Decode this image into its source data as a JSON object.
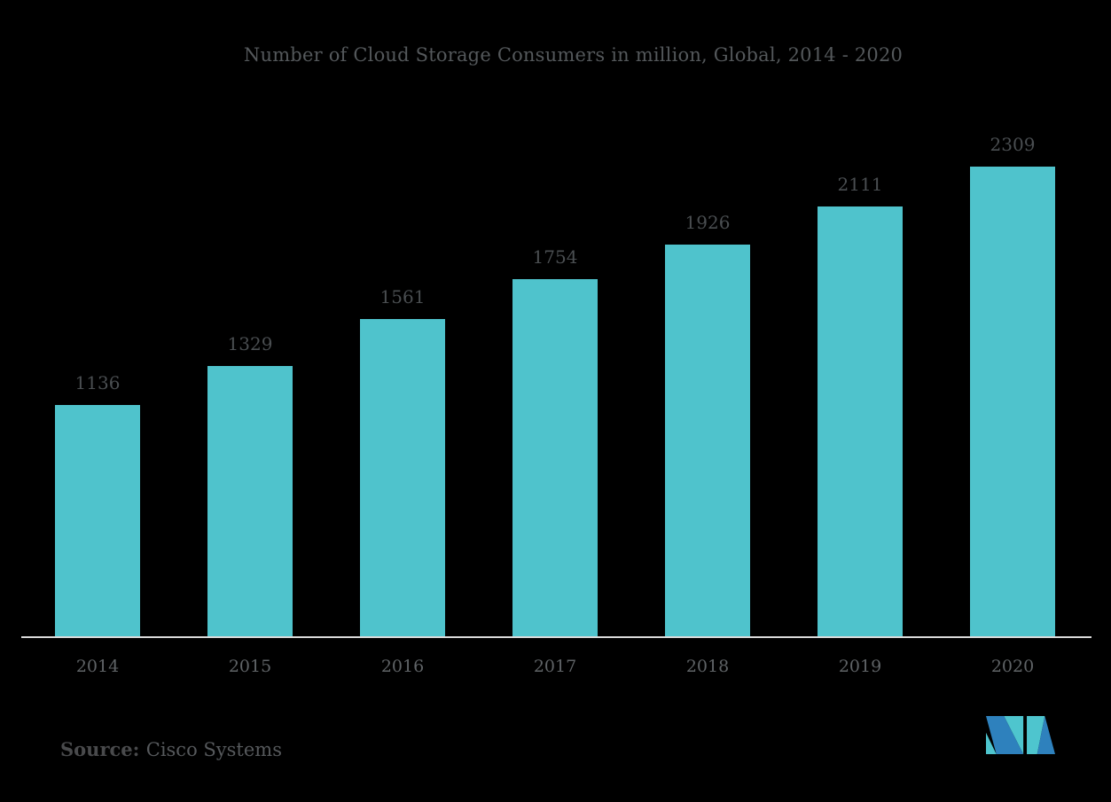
{
  "chart_data": {
    "type": "bar",
    "title": "Number of Cloud Storage Consumers in million, Global, 2014 - 2020",
    "categories": [
      "2014",
      "2015",
      "2016",
      "2017",
      "2018",
      "2019",
      "2020"
    ],
    "values": [
      1136,
      1329,
      1561,
      1754,
      1926,
      2111,
      2309
    ],
    "xlabel": "",
    "ylabel": "",
    "ylim": [
      0,
      2400
    ],
    "grid": false,
    "legend": "none",
    "data_labels": true,
    "bar_color": "#4fc3cc",
    "value_label_color": "#4a4e51",
    "x_label_color": "#5f6366",
    "title_color": "#54585b",
    "axis_line_color": "#d9d9d9",
    "background_color": "#000000"
  },
  "source": {
    "prefix": "Source:",
    "name": "Cisco Systems"
  },
  "logo": {
    "icon": "publisher-m-logo",
    "teal": "#4ec5ce",
    "blue": "#2e81bd"
  }
}
